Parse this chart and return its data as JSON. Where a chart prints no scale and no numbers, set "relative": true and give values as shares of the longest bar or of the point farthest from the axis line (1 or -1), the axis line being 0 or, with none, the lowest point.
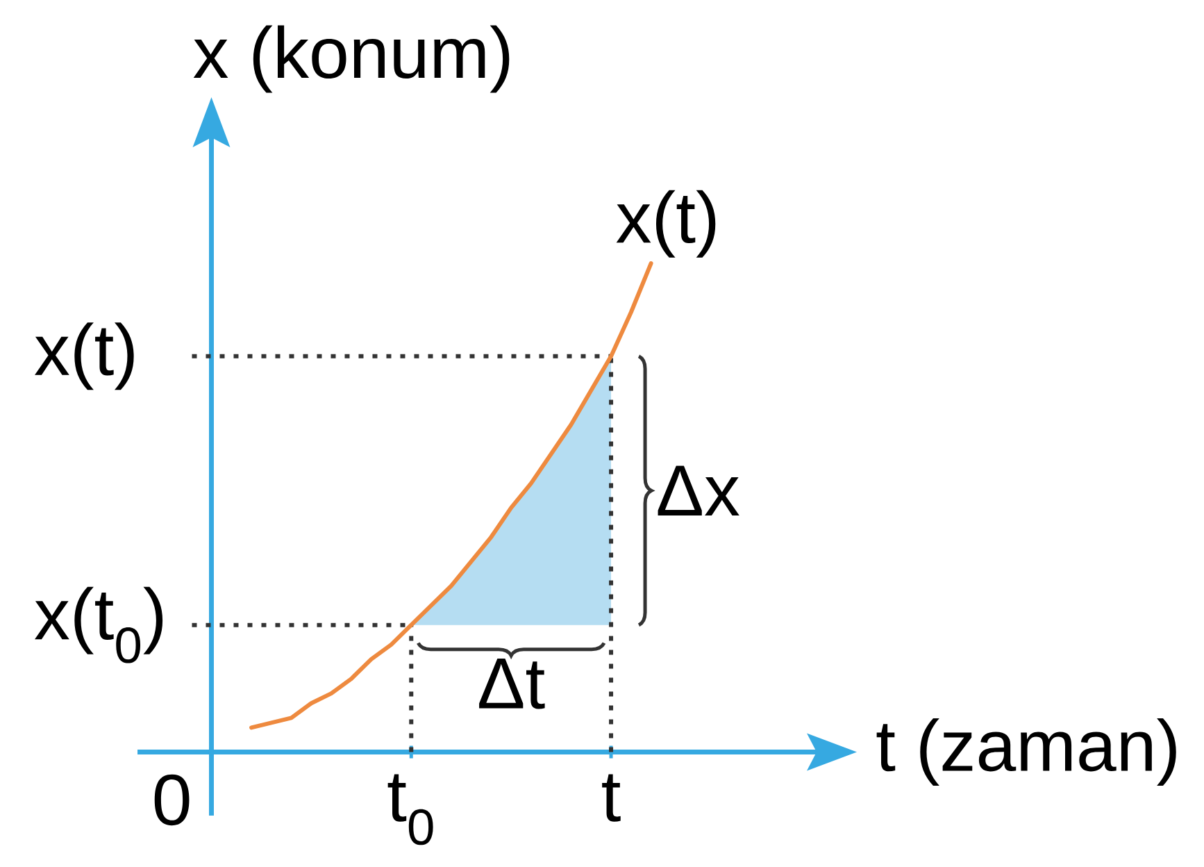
{
  "chart_data": {
    "type": "line",
    "relative": true,
    "xlabel": "t (zaman)",
    "ylabel": "x (konum)",
    "categories": [
      "0",
      null,
      null,
      null,
      null,
      null,
      null,
      null,
      null,
      null,
      "t$_{0}$",
      null,
      null,
      null,
      null,
      null,
      null,
      null,
      null,
      null,
      "t",
      null,
      null
    ],
    "marker": "none",
    "series": [
      {
        "type": "area",
        "color": "#b5ddf2",
        "values": [
          null,
          null,
          null,
          null,
          null,
          null,
          null,
          null,
          null,
          null,
          0.26,
          0.3,
          0.34,
          0.39,
          0.44,
          0.5,
          0.55,
          0.61,
          0.67,
          0.74,
          0.81,
          null,
          null
        ]
      },
      {
        "name": "x(t)",
        "line_style": "solid",
        "color": "#ee8a3f",
        "values": [
          null,
          null,
          0.05,
          0.06,
          0.07,
          0.1,
          0.12,
          0.15,
          0.19,
          0.22,
          0.26,
          0.3,
          0.34,
          0.39,
          0.44,
          0.5,
          0.55,
          0.61,
          0.67,
          0.74,
          0.81,
          0.9,
          1
        ]
      }
    ],
    "ref_lines": [
      {
        "axis": "y",
        "value": 0.81,
        "label": "x(t)",
        "line_style": "dotted",
        "color": "#333333"
      },
      {
        "axis": "y",
        "value": 0.26,
        "label": "x(t$_{0}$)",
        "line_style": "dotted",
        "color": "#333333"
      },
      {
        "axis": "x",
        "value": "t$_{0}$",
        "line_style": "dotted",
        "color": "#333333"
      },
      {
        "axis": "x",
        "value": "t",
        "line_style": "dotted",
        "color": "#333333"
      }
    ],
    "annotations": [
      "Δt",
      "Δx"
    ]
  }
}
